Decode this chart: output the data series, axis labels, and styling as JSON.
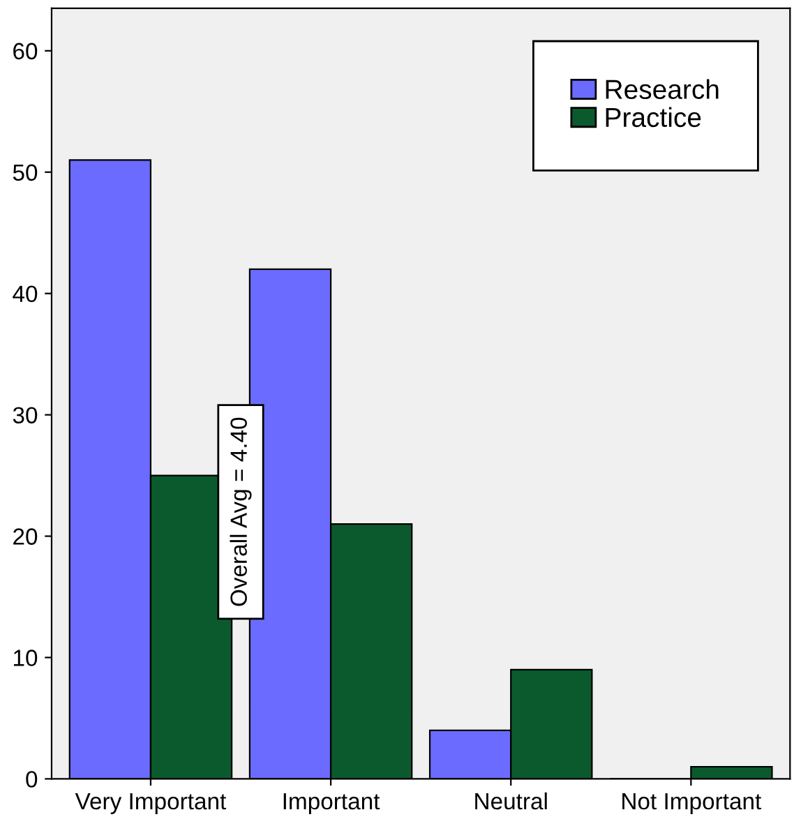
{
  "chart_data": {
    "type": "bar",
    "categories": [
      "Very Important",
      "Important",
      "Neutral",
      "Not Important"
    ],
    "series": [
      {
        "name": "Research",
        "color": "#6b6bff",
        "values": [
          51,
          42,
          4,
          0
        ]
      },
      {
        "name": "Practice",
        "color": "#0b5a2e",
        "values": [
          25,
          21,
          9,
          1
        ]
      }
    ],
    "ylim": [
      0,
      63.5
    ],
    "yticks": [
      0,
      10,
      20,
      30,
      40,
      50,
      60
    ],
    "grid": false,
    "legend": "top right",
    "annotations": [
      "Overall Avg = 4.40"
    ]
  }
}
